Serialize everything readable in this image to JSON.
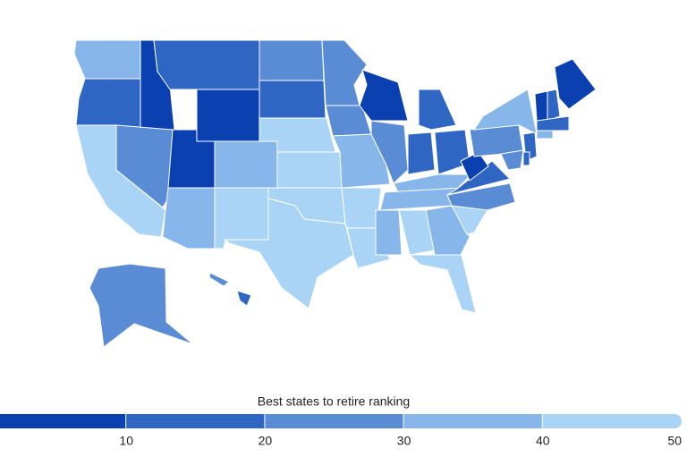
{
  "chart_data": {
    "type": "choropleth",
    "legend_title": "Best states to retire ranking",
    "range": [
      0,
      50
    ],
    "ticks": [
      10,
      20,
      30,
      40,
      50
    ],
    "colors": [
      "#0b40b0",
      "#2f66c4",
      "#5a8cd6",
      "#86b6ea",
      "#a9d4f6"
    ],
    "values": [
      35,
      15,
      45,
      5,
      25,
      15,
      5,
      5,
      35,
      35,
      45,
      25,
      15,
      45,
      45,
      45,
      45,
      25,
      25,
      35,
      45,
      45,
      5,
      25,
      15,
      15,
      15,
      35,
      35,
      35,
      45,
      35,
      45,
      45,
      25,
      15,
      5,
      25,
      35,
      5,
      5,
      15,
      15,
      15,
      25,
      15,
      35,
      25,
      15,
      25
    ]
  }
}
